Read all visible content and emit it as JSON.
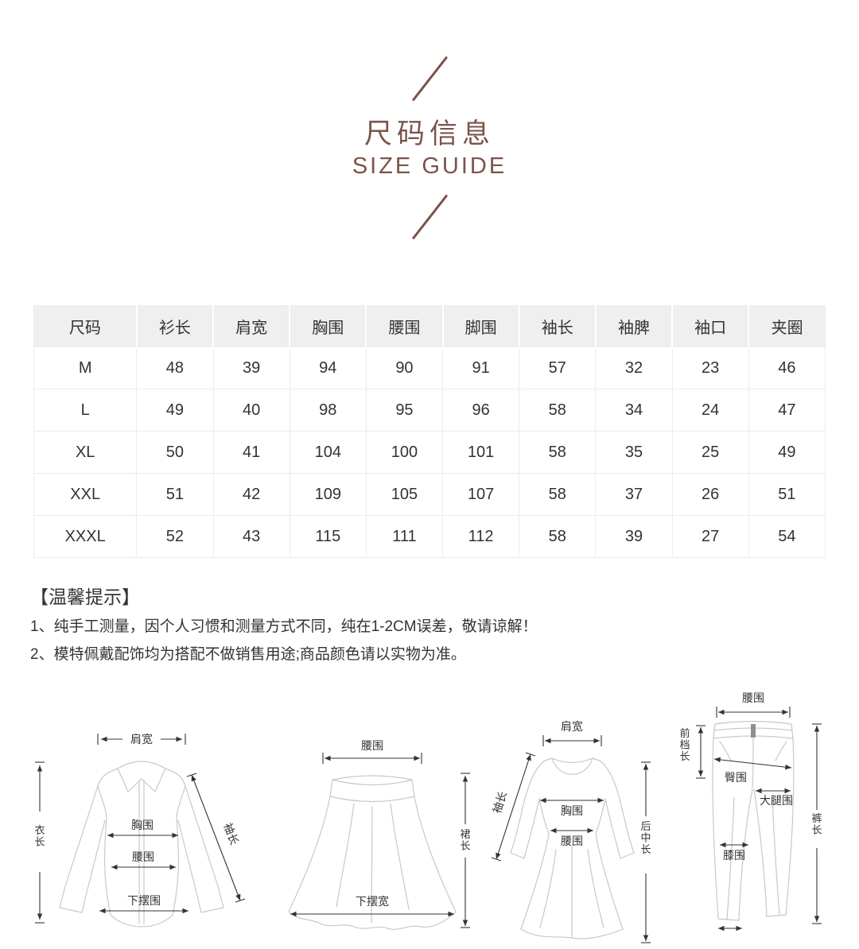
{
  "header": {
    "title_cn": "尺码信息",
    "title_en": "SIZE GUIDE"
  },
  "table": {
    "columns": [
      "尺码",
      "衫长",
      "肩宽",
      "胸围",
      "腰围",
      "脚围",
      "袖长",
      "袖脾",
      "袖口",
      "夹圈"
    ],
    "rows": [
      [
        "M",
        "48",
        "39",
        "94",
        "90",
        "91",
        "57",
        "32",
        "23",
        "46"
      ],
      [
        "L",
        "49",
        "40",
        "98",
        "95",
        "96",
        "58",
        "34",
        "24",
        "47"
      ],
      [
        "XL",
        "50",
        "41",
        "104",
        "100",
        "101",
        "58",
        "35",
        "25",
        "49"
      ],
      [
        "XXL",
        "51",
        "42",
        "109",
        "105",
        "107",
        "58",
        "37",
        "26",
        "51"
      ],
      [
        "XXXL",
        "52",
        "43",
        "115",
        "111",
        "112",
        "58",
        "39",
        "27",
        "54"
      ]
    ]
  },
  "tips": {
    "heading": "【温馨提示】",
    "items": [
      "1、纯手工测量，因个人习惯和测量方式不同，纯在1-2CM误差，敬请谅解！",
      "2、模特佩戴配饰均为搭配不做销售用途;商品颜色请以实物为准。"
    ]
  },
  "diagrams": {
    "shirt": {
      "shoulder": "肩宽",
      "garment_length": "衣长",
      "sleeve_length": "袖长",
      "bust": "胸围",
      "waist": "腰围",
      "hem": "下摆围"
    },
    "skirt": {
      "waist": "腰围",
      "skirt_length": "裙长",
      "hem_width": "下摆宽"
    },
    "dress": {
      "shoulder": "肩宽",
      "sleeve_length": "袖长",
      "bust": "胸围",
      "waist": "腰围",
      "back_center_length": "后中长"
    },
    "pants": {
      "waist": "腰围",
      "front_rise": "前档长",
      "hip": "臀围",
      "thigh": "大腿围",
      "pants_length": "裤长",
      "knee": "膝围"
    }
  },
  "colors": {
    "accent": "#7a544a",
    "table_header_bg": "#efefef",
    "table_border": "#ececec",
    "diagram_line": "#c8c8c8",
    "text": "#333333"
  }
}
